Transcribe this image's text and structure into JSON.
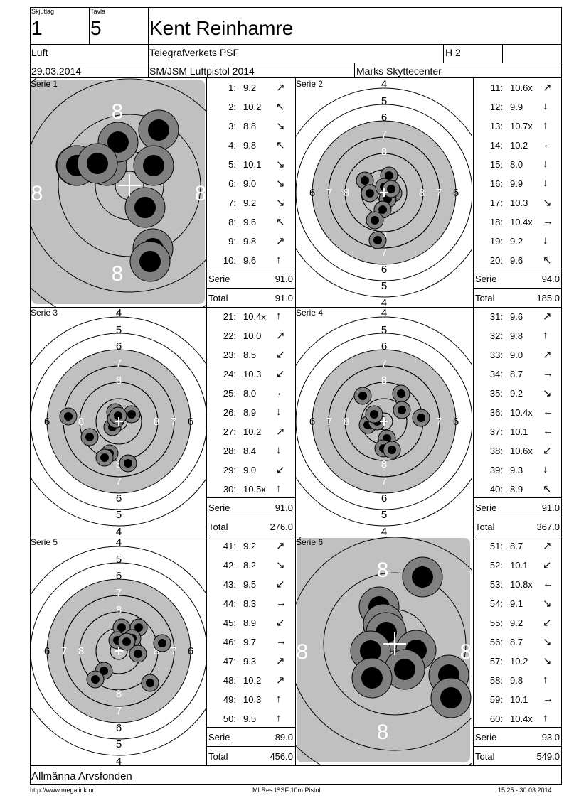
{
  "header": {
    "skjutlag_label": "Skjutlag",
    "skjutlag_value": "1",
    "tavla_label": "Tavla",
    "tavla_value": "5",
    "shooter_name": "Kent Reinhamre",
    "discipline": "Luft",
    "club": "Telegrafverkets PSF",
    "class": "H 2",
    "date": "29.03.2014",
    "competition": "SM/JSM Luftpistol 2014",
    "venue": "Marks Skyttecenter"
  },
  "series": [
    {
      "label": "Serie 1",
      "shots": [
        {
          "n": "1:",
          "v": "9.2",
          "a": "↗"
        },
        {
          "n": "2:",
          "v": "10.2",
          "a": "↖"
        },
        {
          "n": "3:",
          "v": "8.8",
          "a": "↘"
        },
        {
          "n": "4:",
          "v": "9.8",
          "a": "↖"
        },
        {
          "n": "5:",
          "v": "10.1",
          "a": "↘"
        },
        {
          "n": "6:",
          "v": "9.0",
          "a": "↘"
        },
        {
          "n": "7:",
          "v": "9.2",
          "a": "↘"
        },
        {
          "n": "8:",
          "v": "9.6",
          "a": "↖"
        },
        {
          "n": "9:",
          "v": "9.8",
          "a": "↗"
        },
        {
          "n": "10:",
          "v": "9.6",
          "a": "↑"
        }
      ],
      "serie_label": "Serie",
      "serie_value": "91.0",
      "total_label": "Total",
      "total_value": "91.0"
    },
    {
      "label": "Serie 2",
      "shots": [
        {
          "n": "11:",
          "v": "10.6x",
          "a": "↗"
        },
        {
          "n": "12:",
          "v": "9.9",
          "a": "↓"
        },
        {
          "n": "13:",
          "v": "10.7x",
          "a": "↑"
        },
        {
          "n": "14:",
          "v": "10.2",
          "a": "←"
        },
        {
          "n": "15:",
          "v": "8.0",
          "a": "↓"
        },
        {
          "n": "16:",
          "v": "9.9",
          "a": "↓"
        },
        {
          "n": "17:",
          "v": "10.3",
          "a": "↘"
        },
        {
          "n": "18:",
          "v": "10.4x",
          "a": "→"
        },
        {
          "n": "19:",
          "v": "9.2",
          "a": "↓"
        },
        {
          "n": "20:",
          "v": "9.6",
          "a": "↖"
        }
      ],
      "serie_label": "Serie",
      "serie_value": "94.0",
      "total_label": "Total",
      "total_value": "185.0"
    },
    {
      "label": "Serie 3",
      "shots": [
        {
          "n": "21:",
          "v": "10.4x",
          "a": "↑"
        },
        {
          "n": "22:",
          "v": "10.0",
          "a": "↗"
        },
        {
          "n": "23:",
          "v": "8.5",
          "a": "↙"
        },
        {
          "n": "24:",
          "v": "10.3",
          "a": "↙"
        },
        {
          "n": "25:",
          "v": "8.0",
          "a": "←"
        },
        {
          "n": "26:",
          "v": "8.9",
          "a": "↓"
        },
        {
          "n": "27:",
          "v": "10.2",
          "a": "↗"
        },
        {
          "n": "28:",
          "v": "8.4",
          "a": "↓"
        },
        {
          "n": "29:",
          "v": "9.0",
          "a": "↙"
        },
        {
          "n": "30:",
          "v": "10.5x",
          "a": "↑"
        }
      ],
      "serie_label": "Serie",
      "serie_value": "91.0",
      "total_label": "Total",
      "total_value": "276.0"
    },
    {
      "label": "Serie 4",
      "shots": [
        {
          "n": "31:",
          "v": "9.6",
          "a": "↗"
        },
        {
          "n": "32:",
          "v": "9.8",
          "a": "↑"
        },
        {
          "n": "33:",
          "v": "9.0",
          "a": "↗"
        },
        {
          "n": "34:",
          "v": "8.7",
          "a": "→"
        },
        {
          "n": "35:",
          "v": "9.2",
          "a": "↘"
        },
        {
          "n": "36:",
          "v": "10.4x",
          "a": "←"
        },
        {
          "n": "37:",
          "v": "10.1",
          "a": "←"
        },
        {
          "n": "38:",
          "v": "10.6x",
          "a": "↙"
        },
        {
          "n": "39:",
          "v": "9.3",
          "a": "↓"
        },
        {
          "n": "40:",
          "v": "8.9",
          "a": "↖"
        }
      ],
      "serie_label": "Serie",
      "serie_value": "91.0",
      "total_label": "Total",
      "total_value": "367.0"
    },
    {
      "label": "Serie 5",
      "shots": [
        {
          "n": "41:",
          "v": "9.2",
          "a": "↗"
        },
        {
          "n": "42:",
          "v": "8.2",
          "a": "↘"
        },
        {
          "n": "43:",
          "v": "9.5",
          "a": "↙"
        },
        {
          "n": "44:",
          "v": "8.3",
          "a": "→"
        },
        {
          "n": "45:",
          "v": "8.9",
          "a": "↙"
        },
        {
          "n": "46:",
          "v": "9.7",
          "a": "→"
        },
        {
          "n": "47:",
          "v": "9.3",
          "a": "↗"
        },
        {
          "n": "48:",
          "v": "10.2",
          "a": "↗"
        },
        {
          "n": "49:",
          "v": "10.3",
          "a": "↑"
        },
        {
          "n": "50:",
          "v": "9.5",
          "a": "↑"
        }
      ],
      "serie_label": "Serie",
      "serie_value": "89.0",
      "total_label": "Total",
      "total_value": "456.0"
    },
    {
      "label": "Serie 6",
      "shots": [
        {
          "n": "51:",
          "v": "8.7",
          "a": "↗"
        },
        {
          "n": "52:",
          "v": "10.1",
          "a": "↙"
        },
        {
          "n": "53:",
          "v": "10.8x",
          "a": "←"
        },
        {
          "n": "54:",
          "v": "9.1",
          "a": "↘"
        },
        {
          "n": "55:",
          "v": "9.2",
          "a": "↙"
        },
        {
          "n": "56:",
          "v": "8.7",
          "a": "↘"
        },
        {
          "n": "57:",
          "v": "10.2",
          "a": "↘"
        },
        {
          "n": "58:",
          "v": "9.8",
          "a": "↑"
        },
        {
          "n": "59:",
          "v": "10.1",
          "a": "→"
        },
        {
          "n": "60:",
          "v": "10.4x",
          "a": "↑"
        }
      ],
      "serie_label": "Serie",
      "serie_value": "93.0",
      "total_label": "Total",
      "total_value": "549.0"
    }
  ],
  "sponsor": "Allmänna Arvsfonden",
  "footer": {
    "left": "http://www.megalink.no",
    "center": "MLRes ISSF 10m Pistol",
    "right": "15:25 - 30.03.2014"
  }
}
